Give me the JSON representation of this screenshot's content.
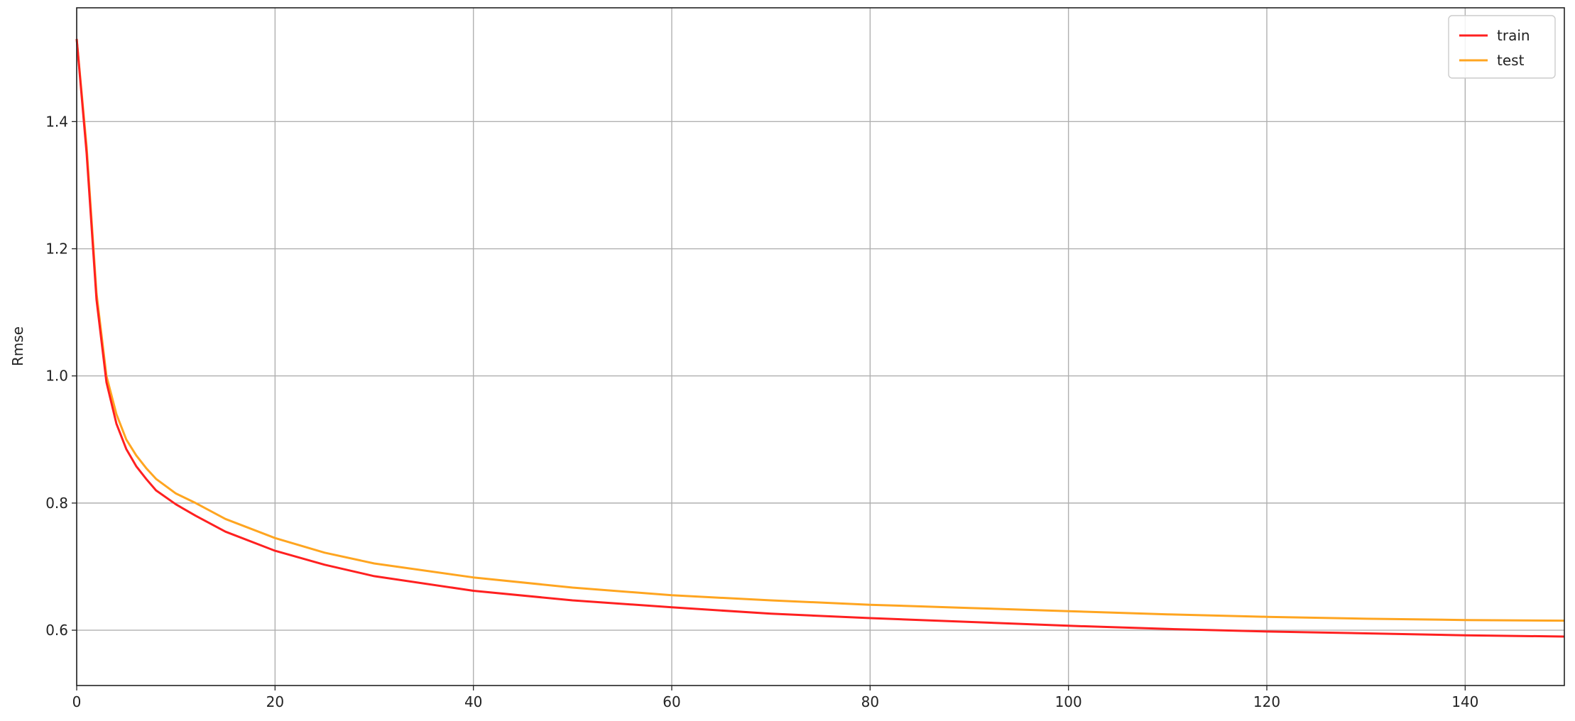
{
  "chart_data": {
    "type": "line",
    "title": "",
    "xlabel": "",
    "ylabel": "Rmse",
    "xlim": [
      0,
      150
    ],
    "ylim": [
      0.513,
      1.579
    ],
    "xticks": [
      0,
      20,
      40,
      60,
      80,
      100,
      120,
      140
    ],
    "yticks": [
      0.6,
      0.8,
      1.0,
      1.2,
      1.4
    ],
    "ytick_labels": [
      "0.6",
      "0.8",
      "1.0",
      "1.2",
      "1.4"
    ],
    "grid": true,
    "legend_position": "top-right",
    "x": [
      0,
      1,
      2,
      3,
      4,
      5,
      6,
      7,
      8,
      10,
      12,
      15,
      20,
      25,
      30,
      40,
      50,
      60,
      70,
      80,
      90,
      100,
      110,
      120,
      130,
      140,
      150
    ],
    "series": [
      {
        "name": "train",
        "color": "#ff2020",
        "values": [
          1.53,
          1.35,
          1.12,
          0.99,
          0.925,
          0.885,
          0.858,
          0.838,
          0.82,
          0.798,
          0.78,
          0.755,
          0.725,
          0.703,
          0.685,
          0.662,
          0.647,
          0.636,
          0.626,
          0.619,
          0.613,
          0.607,
          0.602,
          0.598,
          0.595,
          0.592,
          0.59
        ]
      },
      {
        "name": "test",
        "color": "#ffa520",
        "values": [
          1.53,
          1.36,
          1.13,
          1.0,
          0.94,
          0.9,
          0.875,
          0.855,
          0.838,
          0.815,
          0.8,
          0.775,
          0.745,
          0.722,
          0.705,
          0.683,
          0.667,
          0.655,
          0.647,
          0.64,
          0.635,
          0.63,
          0.625,
          0.621,
          0.618,
          0.616,
          0.615
        ]
      }
    ]
  }
}
